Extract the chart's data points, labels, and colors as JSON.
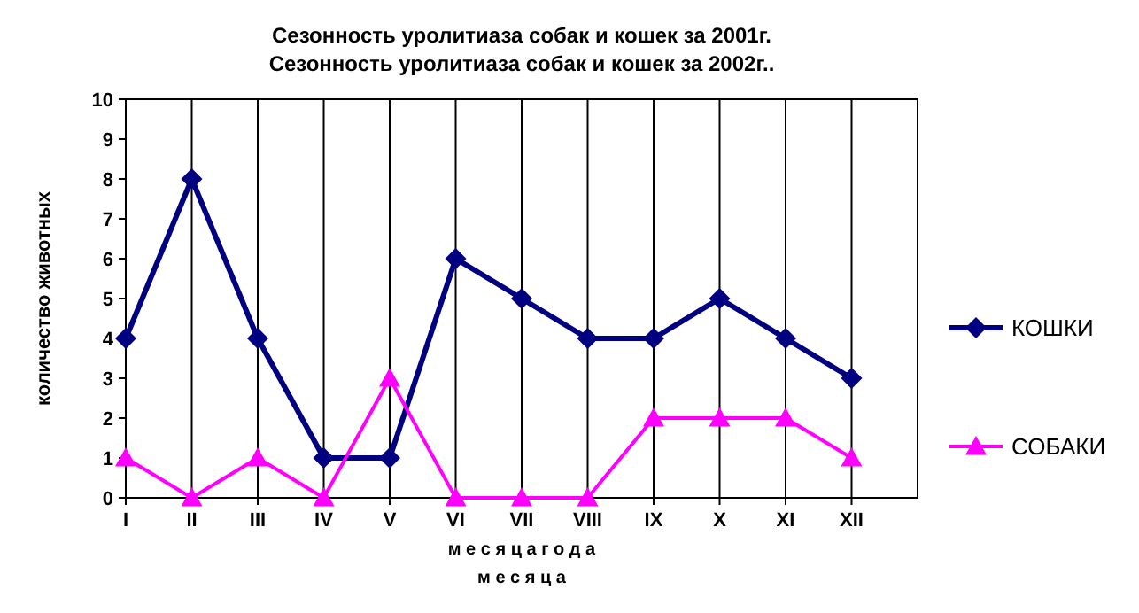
{
  "chart_data": {
    "type": "line",
    "title": "Сезонность уролитиаза собак и кошек за 2001г.",
    "subtitle": "Сезонность уролитиаза собак и кошек за 2002г..",
    "xlabel": "м е с я ц а",
    "ylabel": "количество животных",
    "annotations": [
      "м е с я ц а   г о д а"
    ],
    "categories": [
      "I",
      "II",
      "III",
      "IV",
      "V",
      "VI",
      "VII",
      "VIII",
      "IX",
      "X",
      "XI",
      "XII"
    ],
    "series": [
      {
        "name": "КОШКИ",
        "color": "#000080",
        "marker": "diamond",
        "values": [
          4,
          8,
          4,
          1,
          1,
          6,
          5,
          4,
          4,
          5,
          4,
          3
        ]
      },
      {
        "name": "СОБАКИ",
        "color": "#ff00ff",
        "marker": "triangle",
        "values": [
          1,
          0,
          1,
          0,
          3,
          0,
          0,
          0,
          2,
          2,
          2,
          1
        ]
      }
    ],
    "ylim": [
      0,
      10
    ],
    "yticks": [
      0,
      1,
      2,
      3,
      4,
      5,
      6,
      7,
      8,
      9,
      10
    ],
    "grid": "x",
    "legend": "right"
  }
}
